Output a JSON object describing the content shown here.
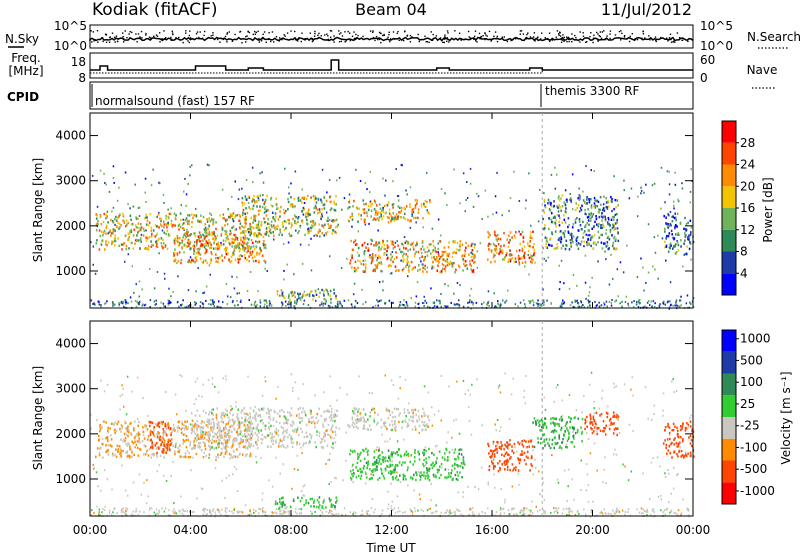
{
  "header": {
    "station": "Kodiak (fitACF)",
    "beam": "Beam 04",
    "date": "11/Jul/2012"
  },
  "colors": {
    "frame": "#000000",
    "power_scale": [
      "#0000ff",
      "#1e3ca8",
      "#2e8b57",
      "#6fb35a",
      "#f5c400",
      "#ff8c00",
      "#ff4500",
      "#ff0000"
    ],
    "velocity_scale": [
      "#0000ff",
      "#1e3ca8",
      "#2e8b57",
      "#32cd32",
      "#c8c8c0",
      "#ff8c00",
      "#ff4500",
      "#ff0000"
    ]
  },
  "side_panels": {
    "nsky_label": "N.Sky",
    "nsearch_label": "N.Search",
    "nsky_ticks": [
      "10^5",
      "10^0"
    ],
    "nsky_ticks_right": [
      "10^5",
      "10^0"
    ],
    "freq_label_line1": "Freq.",
    "freq_label_line2": "[MHz]",
    "freq_ticks": [
      "18",
      "8"
    ],
    "nave_label": "Nave",
    "nave_ticks": [
      "60",
      "0"
    ],
    "cpid_label": "CPID",
    "cpid_segments": [
      {
        "text": "normalsound (fast) 157 RF",
        "start_h": 0,
        "end_h": 18.0
      },
      {
        "text": "themis 3300 RF",
        "start_h": 18.0,
        "end_h": 24
      }
    ]
  },
  "chart_data": [
    {
      "type": "heatmap",
      "title": "",
      "xlabel": "",
      "ylabel": "Slant Range [km]",
      "x_ticks": [
        "00:00",
        "04:00",
        "08:00",
        "12:00",
        "16:00",
        "20:00",
        "00:00"
      ],
      "x_range_hours": [
        0,
        24
      ],
      "ylim": [
        180,
        4500
      ],
      "y_ticks": [
        1000,
        2000,
        3000,
        4000
      ],
      "colorbar": {
        "label": "Power [dB]",
        "ticks": [
          4,
          8,
          12,
          16,
          20,
          24,
          28
        ],
        "range": [
          0,
          32
        ]
      },
      "regions": [
        {
          "t0": 0.2,
          "t1": 6.4,
          "r0": 1500,
          "r1": 2300,
          "level": 18
        },
        {
          "t0": 3.3,
          "t1": 7.0,
          "r0": 1200,
          "r1": 1900,
          "level": 20
        },
        {
          "t0": 6.0,
          "t1": 9.8,
          "r0": 1800,
          "r1": 2700,
          "level": 16
        },
        {
          "t0": 7.3,
          "t1": 9.8,
          "r0": 380,
          "r1": 620,
          "level": 14
        },
        {
          "t0": 10.2,
          "t1": 13.5,
          "r0": 2100,
          "r1": 2600,
          "level": 17
        },
        {
          "t0": 10.3,
          "t1": 15.3,
          "r0": 1000,
          "r1": 1700,
          "level": 20
        },
        {
          "t0": 15.8,
          "t1": 17.7,
          "r0": 1200,
          "r1": 1900,
          "level": 22
        },
        {
          "t0": 18.0,
          "t1": 21.0,
          "r0": 1500,
          "r1": 2700,
          "level": 10
        },
        {
          "t0": 22.8,
          "t1": 24.0,
          "r0": 1400,
          "r1": 2300,
          "level": 8
        }
      ]
    },
    {
      "type": "heatmap",
      "title": "",
      "xlabel": "Time UT",
      "ylabel": "Slant Range [km]",
      "x_ticks": [
        "00:00",
        "04:00",
        "08:00",
        "12:00",
        "16:00",
        "20:00",
        "00:00"
      ],
      "x_range_hours": [
        0,
        24
      ],
      "ylim": [
        180,
        4500
      ],
      "y_ticks": [
        1000,
        2000,
        3000,
        4000
      ],
      "colorbar": {
        "label": "Velocity [m s⁻¹]",
        "ticks": [
          1000,
          500,
          100,
          25,
          -25,
          -100,
          -500,
          -1000
        ]
      },
      "regions": [
        {
          "t0": 0.2,
          "t1": 6.4,
          "r0": 1500,
          "r1": 2300,
          "level": -30
        },
        {
          "t0": 2.3,
          "t1": 3.2,
          "r0": 1600,
          "r1": 2300,
          "level": -200
        },
        {
          "t0": 4.0,
          "t1": 9.8,
          "r0": 1700,
          "r1": 2600,
          "level": 0
        },
        {
          "t0": 7.3,
          "t1": 9.8,
          "r0": 380,
          "r1": 620,
          "level": 90
        },
        {
          "t0": 10.2,
          "t1": 13.5,
          "r0": 2100,
          "r1": 2600,
          "level": 0
        },
        {
          "t0": 10.3,
          "t1": 14.9,
          "r0": 1000,
          "r1": 1700,
          "level": 80
        },
        {
          "t0": 15.8,
          "t1": 17.6,
          "r0": 1200,
          "r1": 1900,
          "level": -200
        },
        {
          "t0": 17.6,
          "t1": 19.6,
          "r0": 1700,
          "r1": 2400,
          "level": 90
        },
        {
          "t0": 19.6,
          "t1": 21.0,
          "r0": 2000,
          "r1": 2500,
          "level": -200
        },
        {
          "t0": 22.8,
          "t1": 24.0,
          "r0": 1500,
          "r1": 2300,
          "level": -150
        }
      ]
    }
  ]
}
